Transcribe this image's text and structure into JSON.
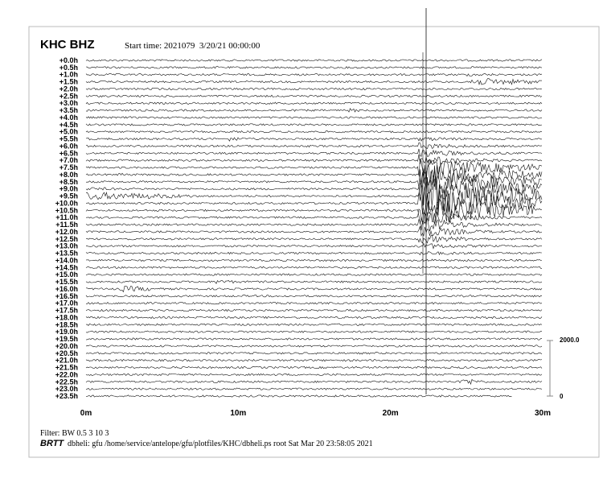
{
  "header": {
    "station": "KHC BHZ",
    "start_time": "Start time: 2021079  3/20/21 00:00:00"
  },
  "rows": [
    "+0.0h",
    "+0.5h",
    "+1.0h",
    "+1.5h",
    "+2.0h",
    "+2.5h",
    "+3.0h",
    "+3.5h",
    "+4.0h",
    "+4.5h",
    "+5.0h",
    "+5.5h",
    "+6.0h",
    "+6.5h",
    "+7.0h",
    "+7.5h",
    "+8.0h",
    "+8.5h",
    "+9.0h",
    "+9.5h",
    "+10.0h",
    "+10.5h",
    "+11.0h",
    "+11.5h",
    "+12.0h",
    "+12.5h",
    "+13.0h",
    "+13.5h",
    "+14.0h",
    "+14.5h",
    "+15.0h",
    "+15.5h",
    "+16.0h",
    "+16.5h",
    "+17.0h",
    "+17.5h",
    "+18.0h",
    "+18.5h",
    "+19.0h",
    "+19.5h",
    "+20.0h",
    "+20.5h",
    "+21.0h",
    "+21.5h",
    "+22.0h",
    "+22.5h",
    "+23.0h",
    "+23.5h"
  ],
  "x_axis": [
    "0m",
    "10m",
    "20m",
    "30m"
  ],
  "scale": [
    "2000.0",
    "0"
  ],
  "footer": {
    "filter": "Filter: BW 0.5 3 10 3",
    "brand": "BRTT",
    "info": "dbheli: gfu /home/service/antelope/gfu/plotfiles/KHC/dbheli.ps root Sat Mar 20 23:58:05 2021"
  }
}
